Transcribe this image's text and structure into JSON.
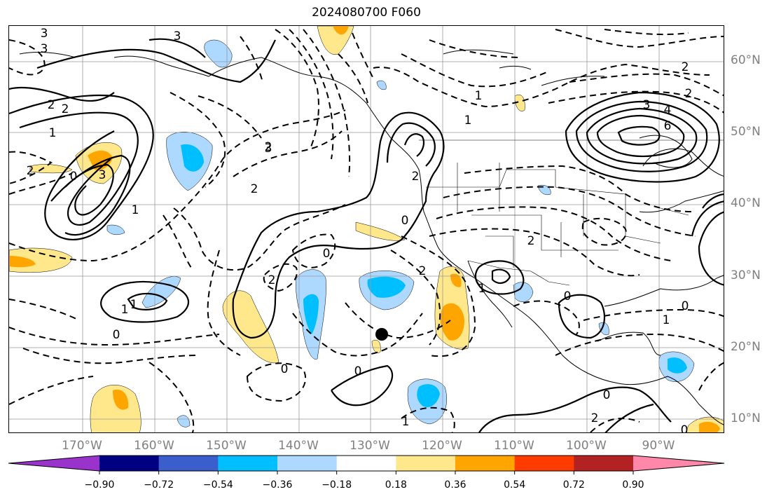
{
  "title": "2024080700 F060",
  "lat_labels": [
    "60°N",
    "50°N",
    "40°N",
    "30°N",
    "20°N",
    "10°N"
  ],
  "lon_labels": [
    "170°W",
    "160°W",
    "150°W",
    "140°W",
    "130°W",
    "120°W",
    "110°W",
    "100°W",
    "90°W"
  ],
  "contour_labels": [
    "3",
    "3",
    "2",
    "2",
    "1",
    "2",
    "3",
    "0",
    "1",
    "2",
    "2",
    "3",
    "0",
    "2",
    "1",
    "1",
    "3",
    "0",
    "0",
    "0",
    "2",
    "4",
    "6",
    "2",
    "2",
    "3",
    "1",
    "0",
    "2",
    "1",
    "1",
    "0",
    "0",
    "0",
    "1",
    "2",
    "2",
    "1",
    "0"
  ],
  "colorbar": {
    "tick_labels": [
      "−0.90",
      "−0.72",
      "−0.54",
      "−0.36",
      "−0.18",
      "0.18",
      "0.36",
      "0.54",
      "0.72",
      "0.90"
    ],
    "colors": [
      "#9933cc",
      "#000080",
      "#3a5fcd",
      "#00bfff",
      "#add8ff",
      "#ffffff",
      "#ffe88c",
      "#ffa500",
      "#ff3c00",
      "#b22222",
      "#ff88aa"
    ]
  },
  "point_marker_color": "#000000"
}
